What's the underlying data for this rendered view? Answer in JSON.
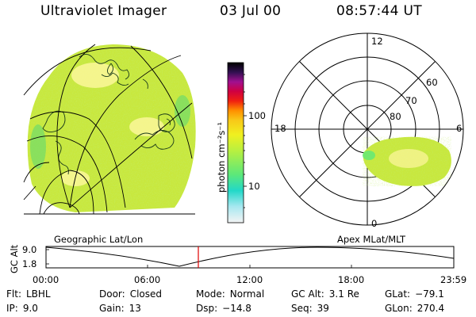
{
  "header": {
    "instrument": "Ultraviolet Imager",
    "date": "03 Jul 00",
    "time": "08:57:44 UT"
  },
  "colorbar": {
    "unit_label": "photon cm⁻²s⁻¹",
    "ticks": [
      "100",
      "10"
    ]
  },
  "polar_plot": {
    "mlt_labels": {
      "top": "12",
      "left": "18",
      "right": "6",
      "bottom": "0"
    },
    "lat_labels": [
      "60",
      "70",
      "80"
    ]
  },
  "projections": {
    "left": "Geographic Lat/Lon",
    "right": "Apex MLat/MLT"
  },
  "altitude_plot": {
    "axis_label": "GC Alt",
    "y_ticks": [
      "9.0",
      "1.8"
    ],
    "x_ticks": [
      "00:00",
      "06:00",
      "12:00",
      "18:00",
      "23:59"
    ],
    "marker_color": "#e00000"
  },
  "status": {
    "flt_label": "Flt:",
    "flt_value": "LBHL",
    "ip_label": "IP:",
    "ip_value": "9.0",
    "door_label": "Door:",
    "door_value": "Closed",
    "gain_label": "Gain:",
    "gain_value": "13",
    "mode_label": "Mode:",
    "mode_value": "Normal",
    "dsp_label": "Dsp:",
    "dsp_value": "−14.8",
    "gcalt_label": "GC Alt:",
    "gcalt_value": "3.1 Re",
    "seq_label": "Seq:",
    "seq_value": "39",
    "glat_label": "GLat:",
    "glat_value": "−79.1",
    "glon_label": "GLon:",
    "glon_value": "270.4"
  }
}
